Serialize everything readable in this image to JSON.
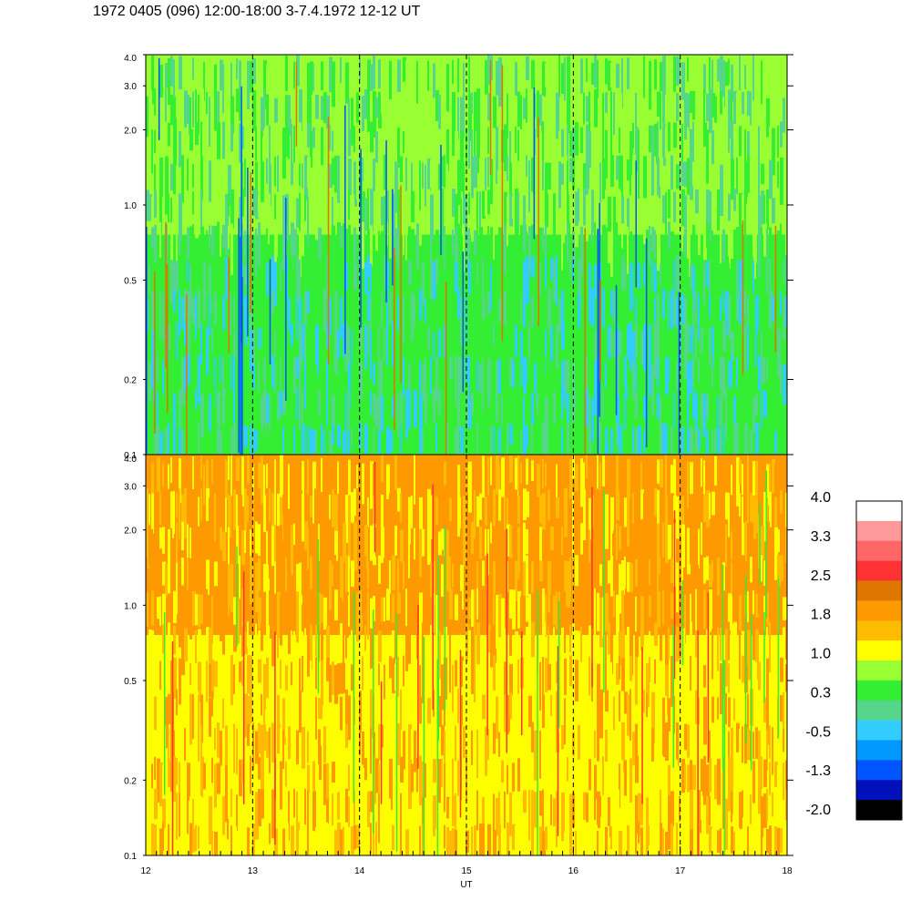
{
  "title": "1972 0405 (096) 12:00-18:00 3-7.4.1972  12-12 UT",
  "chart_data": [
    {
      "type": "heatmap",
      "panel": "top",
      "x_ticks": [
        "12",
        "13",
        "14",
        "15",
        "16",
        "17",
        "18"
      ],
      "xlim": [
        12,
        18
      ],
      "y_scale": "log",
      "ylim": [
        0.1,
        4.0
      ],
      "y_ticks": [
        "0.1",
        "0.2",
        "0.5",
        "1.0",
        "2.0",
        "3.0",
        "4.0"
      ],
      "dashed_hour_lines": [
        13,
        14,
        15,
        16,
        17
      ],
      "dominant_colors_low_freq": [
        "#33ee33",
        "#55d68a",
        "#33ccff"
      ],
      "dominant_colors_high_freq": [
        "#99ff33",
        "#55d68a",
        "#33ee33"
      ]
    },
    {
      "type": "heatmap",
      "panel": "bottom",
      "xlabel": "UT",
      "x_ticks": [
        "12",
        "13",
        "14",
        "15",
        "16",
        "17",
        "18"
      ],
      "xlim": [
        12,
        18
      ],
      "y_scale": "log",
      "ylim": [
        0.1,
        4.0
      ],
      "y_ticks": [
        "0.1",
        "0.2",
        "0.5",
        "1.0",
        "2.0",
        "3.0",
        "4.0"
      ],
      "dashed_hour_lines": [
        13,
        14,
        15,
        16,
        17
      ],
      "dominant_colors_low_freq": [
        "#ffff00",
        "#ffbb00",
        "#ff9900"
      ],
      "dominant_colors_high_freq": [
        "#ff9900",
        "#ffbb00",
        "#ffff00"
      ]
    }
  ],
  "colorbar": {
    "labels": [
      "4.0",
      "3.3",
      "2.5",
      "1.8",
      "1.0",
      "0.3",
      "-0.5",
      "-1.3",
      "-2.0"
    ],
    "colors": [
      "#ffffff",
      "#ff9999",
      "#ff6666",
      "#ff3333",
      "#dd7700",
      "#ff9900",
      "#ffbb00",
      "#ffff00",
      "#99ff33",
      "#33ee33",
      "#55d68a",
      "#33ccff",
      "#0099ff",
      "#0055ff",
      "#0011bb",
      "#000000"
    ]
  }
}
